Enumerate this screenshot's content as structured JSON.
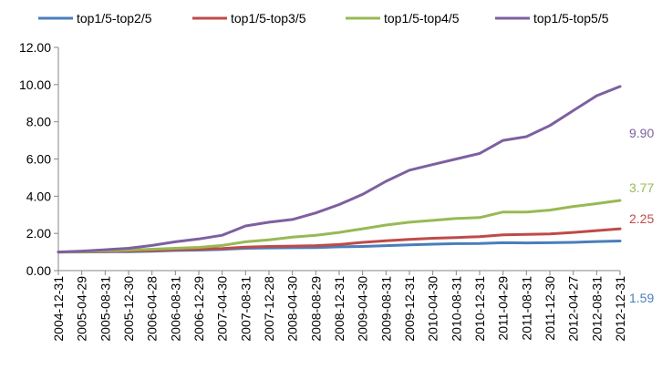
{
  "chart_data": {
    "type": "line",
    "title": "",
    "xlabel": "",
    "ylabel": "",
    "ylim": [
      0,
      12
    ],
    "yticks": [
      "0.00",
      "2.00",
      "4.00",
      "6.00",
      "8.00",
      "10.00",
      "12.00"
    ],
    "grid": false,
    "legend_position": "top",
    "x_tick_labels": [
      "2004-12-31",
      "2005-04-29",
      "2005-08-31",
      "2005-12-30",
      "2006-04-28",
      "2006-08-31",
      "2006-12-29",
      "2007-04-30",
      "2007-08-31",
      "2007-12-28",
      "2008-04-30",
      "2008-08-29",
      "2008-12-31",
      "2009-04-30",
      "2009-08-31",
      "2009-12-31",
      "2010-04-30",
      "2010-08-31",
      "2010-12-31",
      "2011-04-29",
      "2011-08-31",
      "2011-12-30",
      "2012-04-27",
      "2012-08-31",
      "2012-12-31"
    ],
    "series": [
      {
        "name": "top1/5-top2/5",
        "color": "#4a7ebb",
        "end_label": "1.59",
        "values": [
          1.0,
          1.0,
          1.01,
          1.02,
          1.04,
          1.08,
          1.1,
          1.14,
          1.2,
          1.22,
          1.23,
          1.24,
          1.28,
          1.3,
          1.34,
          1.38,
          1.42,
          1.45,
          1.46,
          1.5,
          1.49,
          1.5,
          1.52,
          1.56,
          1.59
        ]
      },
      {
        "name": "top1/5-top3/5",
        "color": "#be4b48",
        "end_label": "2.25",
        "values": [
          1.0,
          1.01,
          1.03,
          1.05,
          1.08,
          1.12,
          1.15,
          1.19,
          1.26,
          1.3,
          1.32,
          1.34,
          1.4,
          1.52,
          1.6,
          1.68,
          1.74,
          1.78,
          1.82,
          1.92,
          1.95,
          1.97,
          2.05,
          2.15,
          2.25
        ]
      },
      {
        "name": "top1/5-top4/5",
        "color": "#98b954",
        "end_label": "3.77",
        "values": [
          1.0,
          1.02,
          1.06,
          1.1,
          1.15,
          1.2,
          1.25,
          1.35,
          1.55,
          1.65,
          1.8,
          1.9,
          2.05,
          2.25,
          2.45,
          2.6,
          2.7,
          2.8,
          2.85,
          3.15,
          3.15,
          3.25,
          3.45,
          3.6,
          3.77
        ]
      },
      {
        "name": "top1/5-top5/5",
        "color": "#7d60a0",
        "end_label": "9.90",
        "values": [
          1.0,
          1.05,
          1.12,
          1.2,
          1.35,
          1.55,
          1.7,
          1.9,
          2.4,
          2.6,
          2.75,
          3.1,
          3.55,
          4.1,
          4.8,
          5.4,
          5.7,
          6.0,
          6.3,
          7.0,
          7.2,
          7.8,
          8.6,
          9.4,
          9.9
        ]
      }
    ]
  }
}
